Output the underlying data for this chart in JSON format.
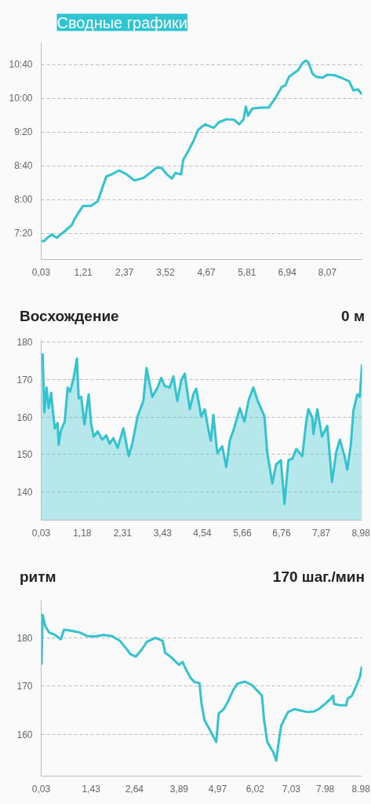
{
  "chart_data": [
    {
      "type": "line",
      "title": "Сводные графики",
      "grid": "y",
      "xlim": [
        0.03,
        9.04
      ],
      "xticks": [
        {
          "value": 0.03,
          "label": "0,03"
        },
        {
          "value": 1.21,
          "label": "1,21"
        },
        {
          "value": 2.37,
          "label": "2,37"
        },
        {
          "value": 3.52,
          "label": "3,52"
        },
        {
          "value": 4.67,
          "label": "4,67"
        },
        {
          "value": 5.81,
          "label": "5,81"
        },
        {
          "value": 6.94,
          "label": "6,94"
        },
        {
          "value": 8.07,
          "label": "8,07"
        }
      ],
      "ylim": [
        6.82,
        11.1
      ],
      "yticks": [
        {
          "value": 7.3333,
          "label": "7:20"
        },
        {
          "value": 8.0,
          "label": "8:00"
        },
        {
          "value": 8.6667,
          "label": "8:40"
        },
        {
          "value": 9.3333,
          "label": "9:20"
        },
        {
          "value": 10.0,
          "label": "10:00"
        },
        {
          "value": 10.6667,
          "label": "10:40"
        }
      ],
      "series": [
        {
          "color": "#33c3cf",
          "x": [
            0.03,
            0.1,
            0.21,
            0.32,
            0.47,
            0.57,
            0.71,
            0.89,
            0.96,
            1.11,
            1.21,
            1.43,
            1.62,
            1.75,
            1.86,
            2.01,
            2.22,
            2.43,
            2.65,
            2.9,
            3.09,
            3.26,
            3.41,
            3.55,
            3.7,
            3.8,
            3.96,
            4.02,
            4.15,
            4.3,
            4.44,
            4.63,
            4.88,
            5.02,
            5.23,
            5.45,
            5.59,
            5.71,
            5.78,
            5.84,
            5.96,
            6.21,
            6.42,
            6.6,
            6.79,
            6.89,
            6.99,
            7.25,
            7.36,
            7.46,
            7.53,
            7.65,
            7.75,
            7.93,
            8.07,
            8.26,
            8.46,
            8.68,
            8.8,
            8.93,
            9.04
          ],
          "values": [
            7.19,
            7.18,
            7.25,
            7.31,
            7.25,
            7.31,
            7.39,
            7.5,
            7.61,
            7.78,
            7.88,
            7.88,
            7.97,
            8.24,
            8.46,
            8.5,
            8.58,
            8.5,
            8.38,
            8.43,
            8.53,
            8.63,
            8.63,
            8.51,
            8.42,
            8.53,
            8.5,
            8.79,
            8.95,
            9.15,
            9.38,
            9.49,
            9.42,
            9.53,
            9.59,
            9.58,
            9.49,
            9.58,
            9.84,
            9.66,
            9.8,
            9.82,
            9.82,
            10.0,
            10.23,
            10.26,
            10.43,
            10.56,
            10.69,
            10.75,
            10.72,
            10.49,
            10.43,
            10.41,
            10.47,
            10.46,
            10.41,
            10.34,
            10.16,
            10.18,
            10.08
          ]
        }
      ]
    },
    {
      "type": "area",
      "title": "Восхождение",
      "subtitle": "0 м",
      "grid": "y",
      "xlim": [
        0.03,
        9.01
      ],
      "xticks": [
        {
          "value": 0.03,
          "label": "0,03"
        },
        {
          "value": 1.18,
          "label": "1,18"
        },
        {
          "value": 2.31,
          "label": "2,31"
        },
        {
          "value": 3.43,
          "label": "3,43"
        },
        {
          "value": 4.54,
          "label": "4,54"
        },
        {
          "value": 5.66,
          "label": "5,66"
        },
        {
          "value": 6.76,
          "label": "6,76"
        },
        {
          "value": 7.87,
          "label": "7,87"
        },
        {
          "value": 8.98,
          "label": "8,98"
        }
      ],
      "ylim": [
        132.5,
        180.7
      ],
      "yticks": [
        140,
        150,
        160,
        170,
        180
      ],
      "series": [
        {
          "color": "#33c3cf",
          "x": [
            0.03,
            0.07,
            0.12,
            0.18,
            0.24,
            0.31,
            0.35,
            0.41,
            0.49,
            0.52,
            0.57,
            0.62,
            0.69,
            0.77,
            0.84,
            0.94,
            1.03,
            1.08,
            1.15,
            1.24,
            1.36,
            1.43,
            1.5,
            1.61,
            1.74,
            1.85,
            1.95,
            2.05,
            2.17,
            2.33,
            2.48,
            2.58,
            2.73,
            2.83,
            2.89,
            2.98,
            3.07,
            3.14,
            3.29,
            3.39,
            3.49,
            3.63,
            3.73,
            3.84,
            3.95,
            4.05,
            4.19,
            4.29,
            4.37,
            4.51,
            4.61,
            4.72,
            4.78,
            4.85,
            4.96,
            5.1,
            5.21,
            5.31,
            5.44,
            5.59,
            5.72,
            5.84,
            5.97,
            6.08,
            6.18,
            6.28,
            6.36,
            6.5,
            6.61,
            6.74,
            6.84,
            6.95,
            7.06,
            7.17,
            7.34,
            7.45,
            7.51,
            7.62,
            7.65,
            7.76,
            7.89,
            8.04,
            8.17,
            8.29,
            8.39,
            8.52,
            8.6,
            8.7,
            8.77,
            8.88,
            8.95,
            9.01
          ],
          "values": [
            176.7,
            176.7,
            161.3,
            167.9,
            162.4,
            166.5,
            162.4,
            157.0,
            158.4,
            152.6,
            155.9,
            157.3,
            158.8,
            167.9,
            166.8,
            170.5,
            175.6,
            165.0,
            165.4,
            158.1,
            166.1,
            158.1,
            154.8,
            156.2,
            154.0,
            155.1,
            152.9,
            154.4,
            151.8,
            157.0,
            149.6,
            152.9,
            160.2,
            162.8,
            164.3,
            173.1,
            168.7,
            165.4,
            167.9,
            170.5,
            168.3,
            167.9,
            170.9,
            164.3,
            169.8,
            171.6,
            162.1,
            166.1,
            167.6,
            160.2,
            162.1,
            156.2,
            153.7,
            160.6,
            150.4,
            152.2,
            146.7,
            153.7,
            157.3,
            162.4,
            158.8,
            164.6,
            167.9,
            164.6,
            162.4,
            160.2,
            150.4,
            142.3,
            147.4,
            148.5,
            136.8,
            148.5,
            148.9,
            151.5,
            149.6,
            158.8,
            162.1,
            159.9,
            155.5,
            162.1,
            154.8,
            157.7,
            142.7,
            150.7,
            154.0,
            149.6,
            146.0,
            152.9,
            161.7,
            166.1,
            165.4,
            174.1
          ]
        }
      ]
    },
    {
      "type": "line",
      "title": "ритм",
      "subtitle": "170 шаг./мин",
      "grid": "y",
      "xlim": [
        0.03,
        9.01
      ],
      "xticks": [
        {
          "value": 0.03,
          "label": "0,03"
        },
        {
          "value": 1.43,
          "label": "1,43"
        },
        {
          "value": 2.64,
          "label": "2,64"
        },
        {
          "value": 3.89,
          "label": "3,89"
        },
        {
          "value": 4.97,
          "label": "4,97"
        },
        {
          "value": 6.02,
          "label": "6,02"
        },
        {
          "value": 7.03,
          "label": "7,03"
        },
        {
          "value": 7.98,
          "label": "7.98"
        },
        {
          "value": 8.98,
          "label": "8.98"
        }
      ],
      "ylim": [
        151.3,
        187.8
      ],
      "yticks": [
        160,
        170,
        180
      ],
      "series": [
        {
          "color": "#33c3cf",
          "x": [
            0.04,
            0.07,
            0.14,
            0.25,
            0.42,
            0.58,
            0.67,
            0.86,
            1.12,
            1.3,
            1.54,
            1.77,
            2.0,
            2.23,
            2.41,
            2.53,
            2.68,
            2.84,
            2.99,
            3.23,
            3.43,
            3.5,
            3.65,
            3.89,
            3.99,
            4.06,
            4.22,
            4.33,
            4.46,
            4.52,
            4.6,
            4.73,
            4.84,
            4.93,
            5.0,
            5.14,
            5.26,
            5.4,
            5.53,
            5.73,
            5.93,
            6.11,
            6.21,
            6.27,
            6.36,
            6.53,
            6.61,
            6.69,
            6.75,
            6.94,
            7.12,
            7.3,
            7.48,
            7.66,
            7.8,
            7.98,
            8.14,
            8.2,
            8.23,
            8.39,
            8.57,
            8.61,
            8.73,
            8.86,
            8.95,
            9.01
          ],
          "values": [
            174.4,
            184.8,
            182.5,
            181.1,
            180.6,
            179.7,
            181.7,
            181.5,
            181.1,
            180.4,
            180.3,
            180.6,
            180.4,
            179.4,
            177.8,
            176.6,
            176.1,
            177.5,
            179.2,
            180.0,
            179.4,
            176.9,
            176.1,
            174.4,
            175.0,
            173.8,
            171.6,
            170.8,
            170.6,
            166.3,
            162.9,
            161.2,
            159.6,
            158.4,
            164.3,
            165.2,
            166.8,
            169.1,
            170.5,
            170.9,
            170.2,
            168.8,
            168.0,
            162.9,
            158.4,
            156.2,
            154.5,
            159.0,
            161.8,
            164.6,
            165.2,
            164.9,
            164.6,
            164.7,
            165.2,
            166.3,
            167.4,
            168.0,
            166.3,
            166.0,
            166.0,
            167.4,
            168.0,
            170.2,
            171.9,
            174.1
          ]
        }
      ]
    }
  ]
}
